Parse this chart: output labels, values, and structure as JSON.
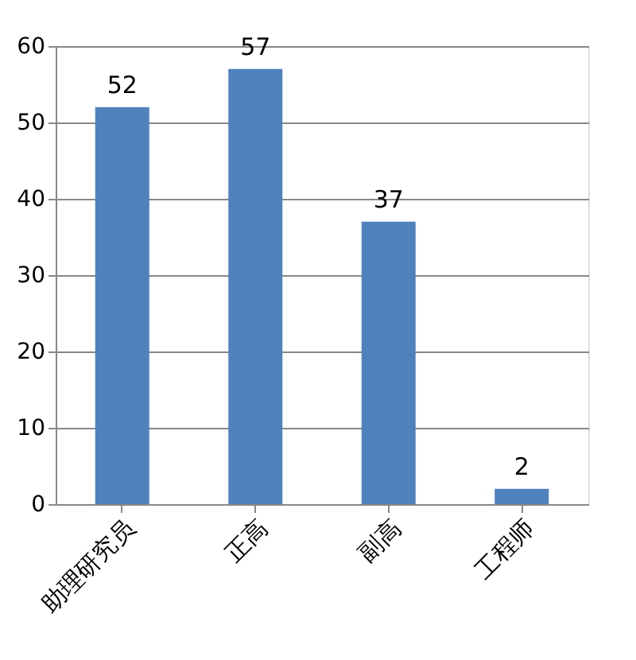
{
  "chart_data": {
    "type": "bar",
    "categories": [
      "助理研究员",
      "正高",
      "副高",
      "工程师"
    ],
    "values": [
      52,
      57,
      37,
      2
    ],
    "color": "#4f81bd",
    "ylim": [
      0,
      60
    ],
    "yticks": [
      0,
      10,
      20,
      30,
      40,
      50,
      60
    ],
    "grid": "y",
    "data_labels": true
  }
}
